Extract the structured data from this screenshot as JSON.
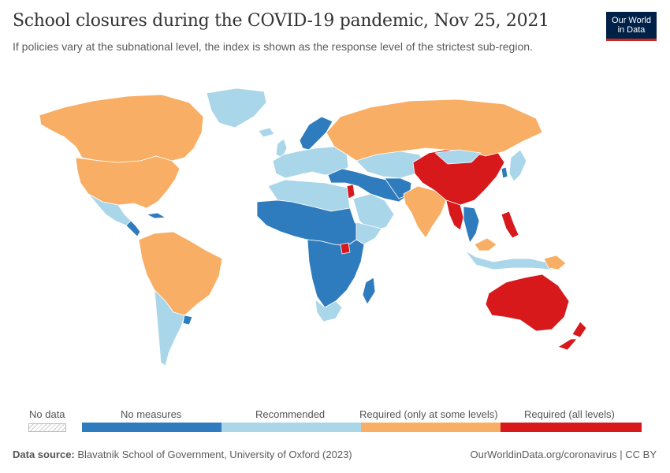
{
  "header": {
    "title": "School closures during the COVID-19 pandemic, Nov 25, 2021",
    "subtitle": "If policies vary at the subnational level, the index is shown as the response level of the strictest sub-region."
  },
  "logo": {
    "line1": "Our World",
    "line2": "in Data"
  },
  "colors": {
    "no_measures": "#2e7cbd",
    "recommended": "#a9d6e9",
    "required_some": "#f8ae64",
    "required_all": "#d7191c",
    "no_data": "#ffffff"
  },
  "legend": {
    "no_data_label": "No data",
    "categories": [
      {
        "label": "No measures",
        "color": "#2e7cbd"
      },
      {
        "label": "Recommended",
        "color": "#a9d6e9"
      },
      {
        "label": "Required (only at some levels)",
        "color": "#f8ae64"
      },
      {
        "label": "Required (all levels)",
        "color": "#d7191c"
      }
    ]
  },
  "footer": {
    "source_label": "Data source:",
    "source_text": "Blavatnik School of Government, University of Oxford (2023)",
    "right_text": "OurWorldinData.org/coronavirus | CC BY"
  }
}
